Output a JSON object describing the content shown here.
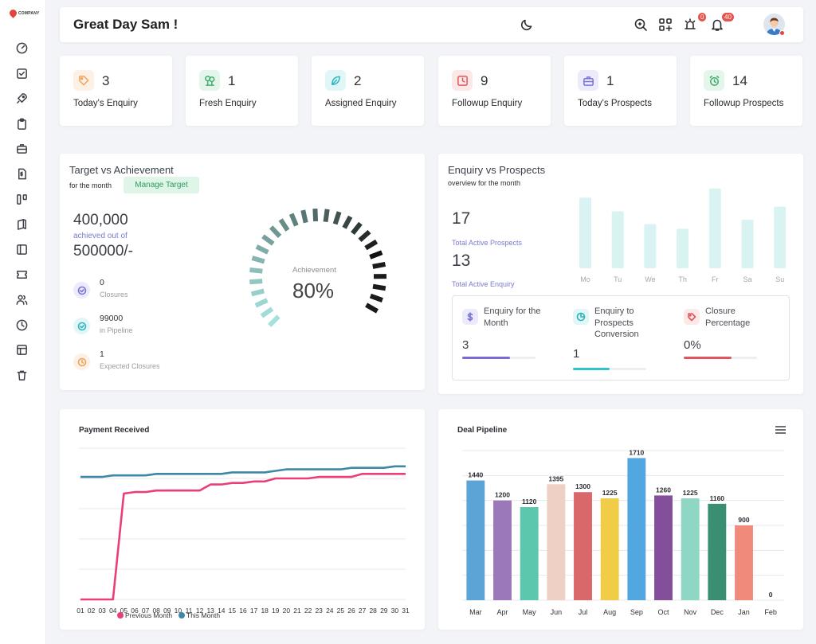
{
  "brand": {
    "logo_text": "COMPANY"
  },
  "sidebar": {
    "items": [
      {
        "icon": "dashboard-icon"
      },
      {
        "icon": "check-square-icon"
      },
      {
        "icon": "rocket-icon"
      },
      {
        "icon": "clipboard-icon"
      },
      {
        "icon": "briefcase-icon"
      },
      {
        "icon": "invoice-icon"
      },
      {
        "icon": "kanban-icon"
      },
      {
        "icon": "book-icon"
      },
      {
        "icon": "sidebar-layout-icon"
      },
      {
        "icon": "ticket-icon"
      },
      {
        "icon": "users-icon"
      },
      {
        "icon": "clock-icon"
      },
      {
        "icon": "table-icon"
      },
      {
        "icon": "trash-icon"
      }
    ]
  },
  "header": {
    "greeting": "Great Day Sam !",
    "alarm_badge": "0",
    "notif_badge": "40"
  },
  "stats": [
    {
      "value": "3",
      "label": "Today's Enquiry",
      "icon": "tag-icon",
      "bg": "#fdf0e4",
      "color": "#f0a35b"
    },
    {
      "value": "1",
      "label": "Fresh Enquiry",
      "icon": "tree-icon",
      "bg": "#e4f5ea",
      "color": "#3fae6d"
    },
    {
      "value": "2",
      "label": "Assigned Enquiry",
      "icon": "leaf-icon",
      "bg": "#e1f6f7",
      "color": "#31b6c0"
    },
    {
      "value": "9",
      "label": "Followup Enquiry",
      "icon": "clock-square-icon",
      "bg": "#fde8e8",
      "color": "#e0565c"
    },
    {
      "value": "1",
      "label": "Today's Prospects",
      "icon": "briefcase-icon",
      "bg": "#ecebfb",
      "color": "#7a73d6"
    },
    {
      "value": "14",
      "label": "Followup Prospects",
      "icon": "alarm-icon",
      "bg": "#e4f5ea",
      "color": "#3fae6d"
    }
  ],
  "target": {
    "title": "Target vs Achievement",
    "subtitle": "for the month",
    "manage_label": "Manage Target",
    "achieved": "400,000",
    "achieved_text": "achieved out of",
    "target": "500000/-",
    "rows": [
      {
        "value": "0",
        "label": "Closures",
        "icon": "check-circle-icon"
      },
      {
        "value": "99000",
        "label": "in Pipeline",
        "icon": "check-circle-icon"
      },
      {
        "value": "1",
        "label": "Expected Closures",
        "icon": "clock-icon"
      }
    ],
    "gauge_label": "Achievement",
    "gauge_value": "80%",
    "gauge_fraction": 0.8
  },
  "enquiry": {
    "title": "Enquiry vs Prospects",
    "subtitle": "overview for the month",
    "prospects_value": "17",
    "prospects_label": "Total Active Prospects",
    "enquiry_value": "13",
    "enquiry_label": "Total Active Enquiry",
    "week": {
      "days": [
        "Mo",
        "Tu",
        "We",
        "Th",
        "Fr",
        "Sa",
        "Su"
      ],
      "values": [
        93,
        75,
        58,
        52,
        105,
        64,
        81
      ],
      "color": "#d8f3f1"
    },
    "metrics": [
      {
        "title1": "Enquiry for the",
        "title2": "Month",
        "title3": "",
        "value": "3",
        "fill": 0.65,
        "color": "#7b6ad6",
        "icon": "dollar-icon",
        "bg": "#ecebfb"
      },
      {
        "title1": "Enquiry to",
        "title2": "Prospects",
        "title3": "Conversion",
        "value": "1",
        "fill": 0.5,
        "color": "#2fc3cc",
        "icon": "pie-chart-icon",
        "bg": "#e1f6f7"
      },
      {
        "title1": "Closure",
        "title2": "Percentage",
        "title3": "",
        "value": "0%",
        "fill": 0.65,
        "color": "#e0565c",
        "icon": "tag-icon",
        "bg": "#fde8e8"
      }
    ]
  },
  "chart_data": [
    {
      "type": "line",
      "title": "Payment Received",
      "x": [
        "01",
        "02",
        "03",
        "04",
        "05",
        "06",
        "07",
        "08",
        "09",
        "10",
        "11",
        "12",
        "13",
        "14",
        "15",
        "16",
        "17",
        "18",
        "19",
        "20",
        "21",
        "22",
        "23",
        "24",
        "25",
        "26",
        "27",
        "28",
        "29",
        "30",
        "31"
      ],
      "series": [
        {
          "name": "Previous Month",
          "color": "#e93f76",
          "values": [
            0,
            0,
            0,
            0,
            35,
            35.5,
            35.5,
            36,
            36,
            36,
            36,
            36,
            38,
            38,
            38.5,
            38.5,
            39,
            39,
            40,
            40,
            40,
            40,
            40.5,
            40.5,
            40.5,
            40.5,
            41.5,
            41.5,
            41.5,
            41.5,
            41.5
          ]
        },
        {
          "name": "This Month",
          "color": "#3f88a5",
          "values": [
            40.5,
            40.5,
            40.5,
            41,
            41,
            41,
            41,
            41.5,
            41.5,
            41.5,
            41.5,
            41.5,
            41.5,
            41.5,
            42,
            42,
            42,
            42,
            42.5,
            43,
            43,
            43,
            43,
            43,
            43,
            43.5,
            43.5,
            43.5,
            43.5,
            44,
            44
          ]
        }
      ],
      "ylim": [
        0,
        50
      ],
      "grid": true,
      "legend": "bottom"
    },
    {
      "type": "bar",
      "title": "Deal Pipeline",
      "categories": [
        "Mar",
        "Apr",
        "May",
        "Jun",
        "Jul",
        "Aug",
        "Sep",
        "Oct",
        "Nov",
        "Dec",
        "Jan",
        "Feb"
      ],
      "values": [
        1440,
        1200,
        1120,
        1395,
        1300,
        1225,
        1710,
        1260,
        1225,
        1160,
        900,
        0
      ],
      "colors": [
        "#5aa4d6",
        "#9b78b9",
        "#5dc7ad",
        "#efd0c5",
        "#d8686a",
        "#f0cc47",
        "#52a7e0",
        "#834f9b",
        "#8fd6c4",
        "#3a8f73",
        "#f08a7b",
        "#ccc"
      ],
      "ylim": [
        0,
        1800
      ],
      "grid": true
    }
  ]
}
